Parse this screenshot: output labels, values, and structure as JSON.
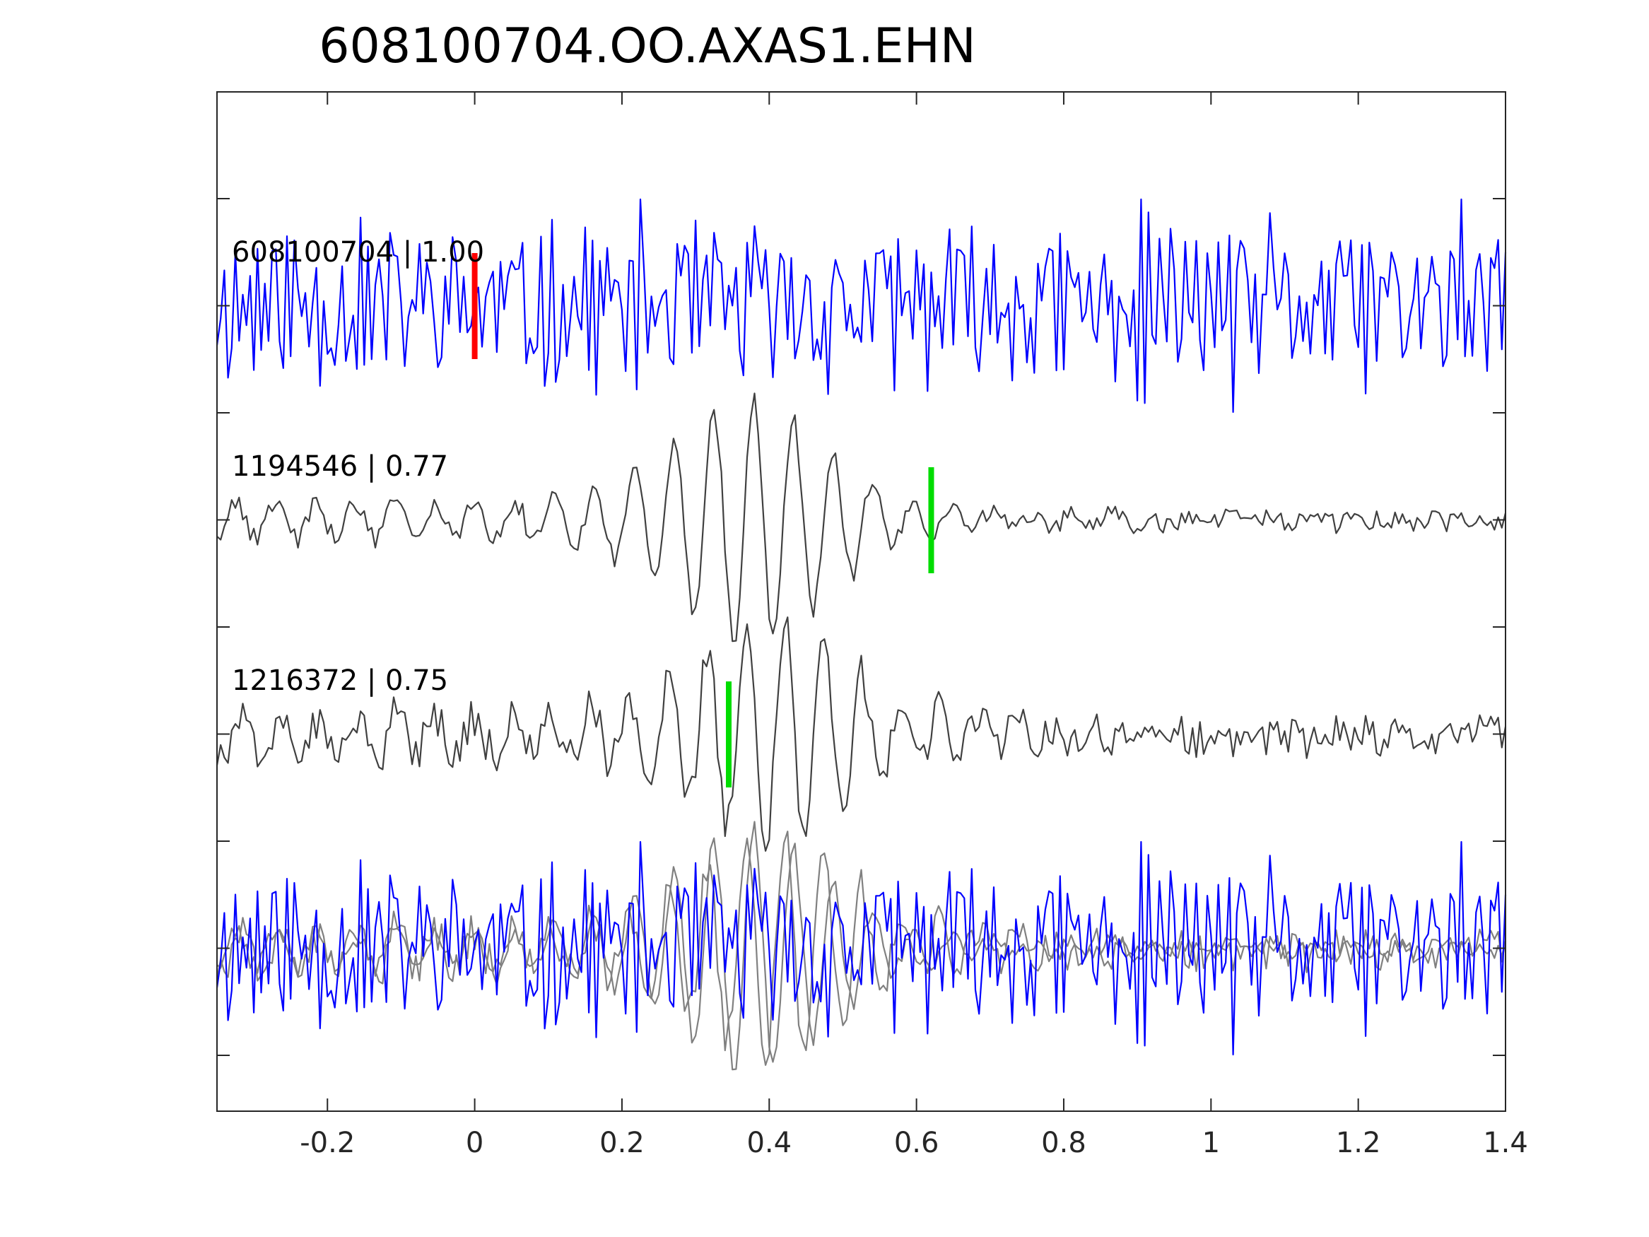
{
  "chart_data": {
    "type": "line",
    "title": "608100704.OO.AXAS1.EHN",
    "xlabel": "",
    "ylabel": "",
    "xlim": [
      -0.35,
      1.4
    ],
    "x_ticks": [
      -0.2,
      0,
      0.2,
      0.4,
      0.6,
      0.8,
      1,
      1.2,
      1.4
    ],
    "x_tick_labels": [
      "-0.2",
      "0",
      "0.2",
      "0.4",
      "0.6",
      "0.8",
      "1",
      "1.2",
      "1.4"
    ],
    "sample_interval": 0.005,
    "grid": false,
    "legend": "none",
    "colors": {
      "target": "#0000ff",
      "template": "#404040",
      "template_overlay": "#808080",
      "target_pick": "#ff0000",
      "template_pick": "#00dd00"
    },
    "traces": [
      {
        "label": "608100704 | 1.00",
        "role": "target",
        "pick_time": 0.0,
        "noise_amplitude": 0.7,
        "seed": 11
      },
      {
        "label": "1194546 | 0.77",
        "role": "template",
        "pick_time": 0.62,
        "center": 0.375,
        "width": 0.14,
        "frequency": 18.5,
        "peak_amplitude": 0.95,
        "noise_amplitude": 0.07,
        "seed": 23
      },
      {
        "label": "1216372 | 0.75",
        "role": "template",
        "pick_time": 0.345,
        "center": 0.405,
        "width": 0.15,
        "frequency": 19.0,
        "peak_amplitude": 0.85,
        "noise_amplitude": 0.14,
        "seed": 37
      }
    ],
    "overlay": {
      "role": "stack",
      "traces": [
        "608100704 | 1.00",
        "1194546 | 0.77",
        "1216372 | 0.75"
      ]
    }
  }
}
